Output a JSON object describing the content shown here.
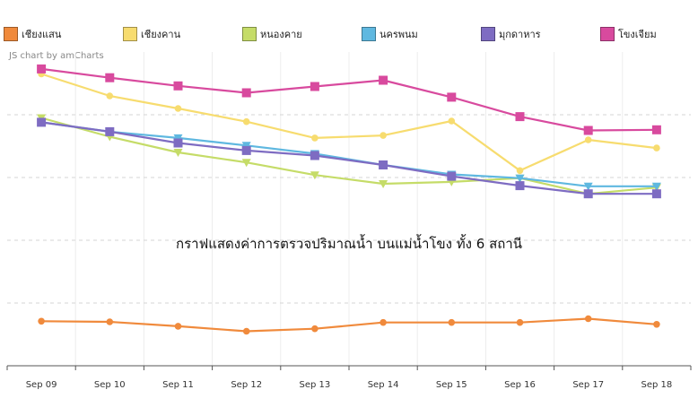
{
  "chart_data": {
    "type": "line",
    "title": "กราฟแสดงค่าการตรวจปริมาณน้ำ บนแม่น้ำโขง ทั้ง 6 สถานี",
    "credit": "JS chart by amCharts",
    "xlabel": "",
    "ylabel": "",
    "categories": [
      "Sep 09",
      "Sep 10",
      "Sep 11",
      "Sep 12",
      "Sep 13",
      "Sep 14",
      "Sep 15",
      "Sep 16",
      "Sep 17",
      "Sep 18"
    ],
    "ylim": [
      0,
      100
    ],
    "grid": true,
    "legend_position": "top",
    "series": [
      {
        "name": "เชียงแสน",
        "color": "#f08a3c",
        "marker": "circle",
        "values": [
          14.2,
          14.0,
          12.6,
          11.0,
          11.8,
          13.8,
          13.8,
          13.8,
          15.0,
          13.2
        ]
      },
      {
        "name": "เชียงคาน",
        "color": "#f7dc6f",
        "marker": "circle",
        "values": [
          93.0,
          86.0,
          82.0,
          77.8,
          72.6,
          73.4,
          78.0,
          62.2,
          72.0,
          69.4
        ]
      },
      {
        "name": "หนองคาย",
        "color": "#c5dc68",
        "marker": "triangle",
        "values": [
          79.0,
          73.0,
          68.0,
          64.8,
          60.8,
          58.0,
          58.6,
          59.8,
          54.8,
          56.8
        ]
      },
      {
        "name": "นครพนม",
        "color": "#5fb8e0",
        "marker": "triangle",
        "values": [
          77.6,
          74.6,
          72.6,
          70.2,
          67.6,
          64.0,
          61.0,
          59.8,
          57.2,
          57.2
        ]
      },
      {
        "name": "มุกดาหาร",
        "color": "#7e6cc2",
        "marker": "square",
        "values": [
          77.6,
          74.6,
          71.0,
          68.6,
          67.0,
          64.0,
          60.4,
          57.4,
          54.8,
          54.8
        ]
      },
      {
        "name": "โขงเจียม",
        "color": "#d84a9e",
        "marker": "square",
        "values": [
          94.6,
          91.8,
          89.2,
          87.0,
          89.0,
          91.0,
          85.6,
          79.4,
          75.0,
          75.2
        ]
      }
    ]
  }
}
